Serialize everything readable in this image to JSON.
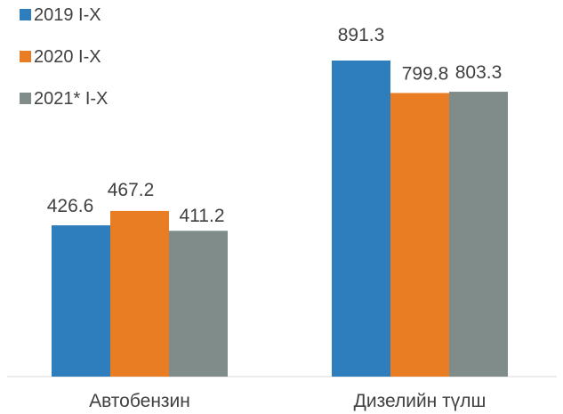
{
  "chart_data": {
    "type": "bar",
    "categories": [
      "Автобензин",
      "Дизелийн түлш"
    ],
    "series": [
      {
        "name": "2019 I-X",
        "values": [
          426.6,
          891.3
        ],
        "color": "#2E7EBD"
      },
      {
        "name": "2020 I-X",
        "values": [
          467.2,
          799.8
        ],
        "color": "#E87D23"
      },
      {
        "name": "2021* I-X",
        "values": [
          411.2,
          803.3
        ],
        "color": "#7F8C89"
      }
    ],
    "title": "",
    "xlabel": "",
    "ylabel": "",
    "ylim": [
      0,
      1000
    ],
    "grid": false,
    "legend": "top-left"
  }
}
